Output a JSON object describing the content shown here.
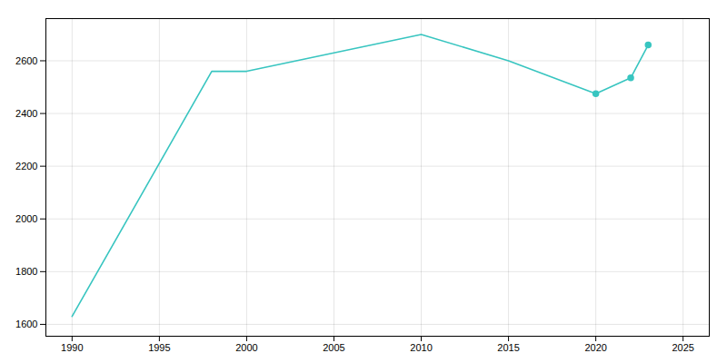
{
  "chart_data": {
    "type": "line",
    "x": [
      1990,
      1998,
      2000,
      2005,
      2010,
      2015,
      2020,
      2022,
      2023
    ],
    "series": [
      {
        "color": "#38c5c0",
        "values": [
          1630,
          2560,
          2560,
          2630,
          2700,
          2600,
          2475,
          2535,
          2660
        ]
      },
      {
        "type": "scatter",
        "marker": "o",
        "color": "#38c5c0",
        "values": [
          null,
          null,
          null,
          null,
          null,
          null,
          2475,
          2535,
          2660
        ]
      }
    ],
    "xlim": [
      1988.5,
      2026.5
    ],
    "ylim": [
      1555,
      2760
    ],
    "xticks": [
      1990,
      1995,
      2000,
      2005,
      2010,
      2015,
      2020,
      2025
    ],
    "yticks": [
      1600,
      1800,
      2000,
      2200,
      2400,
      2600
    ],
    "grid": true
  }
}
